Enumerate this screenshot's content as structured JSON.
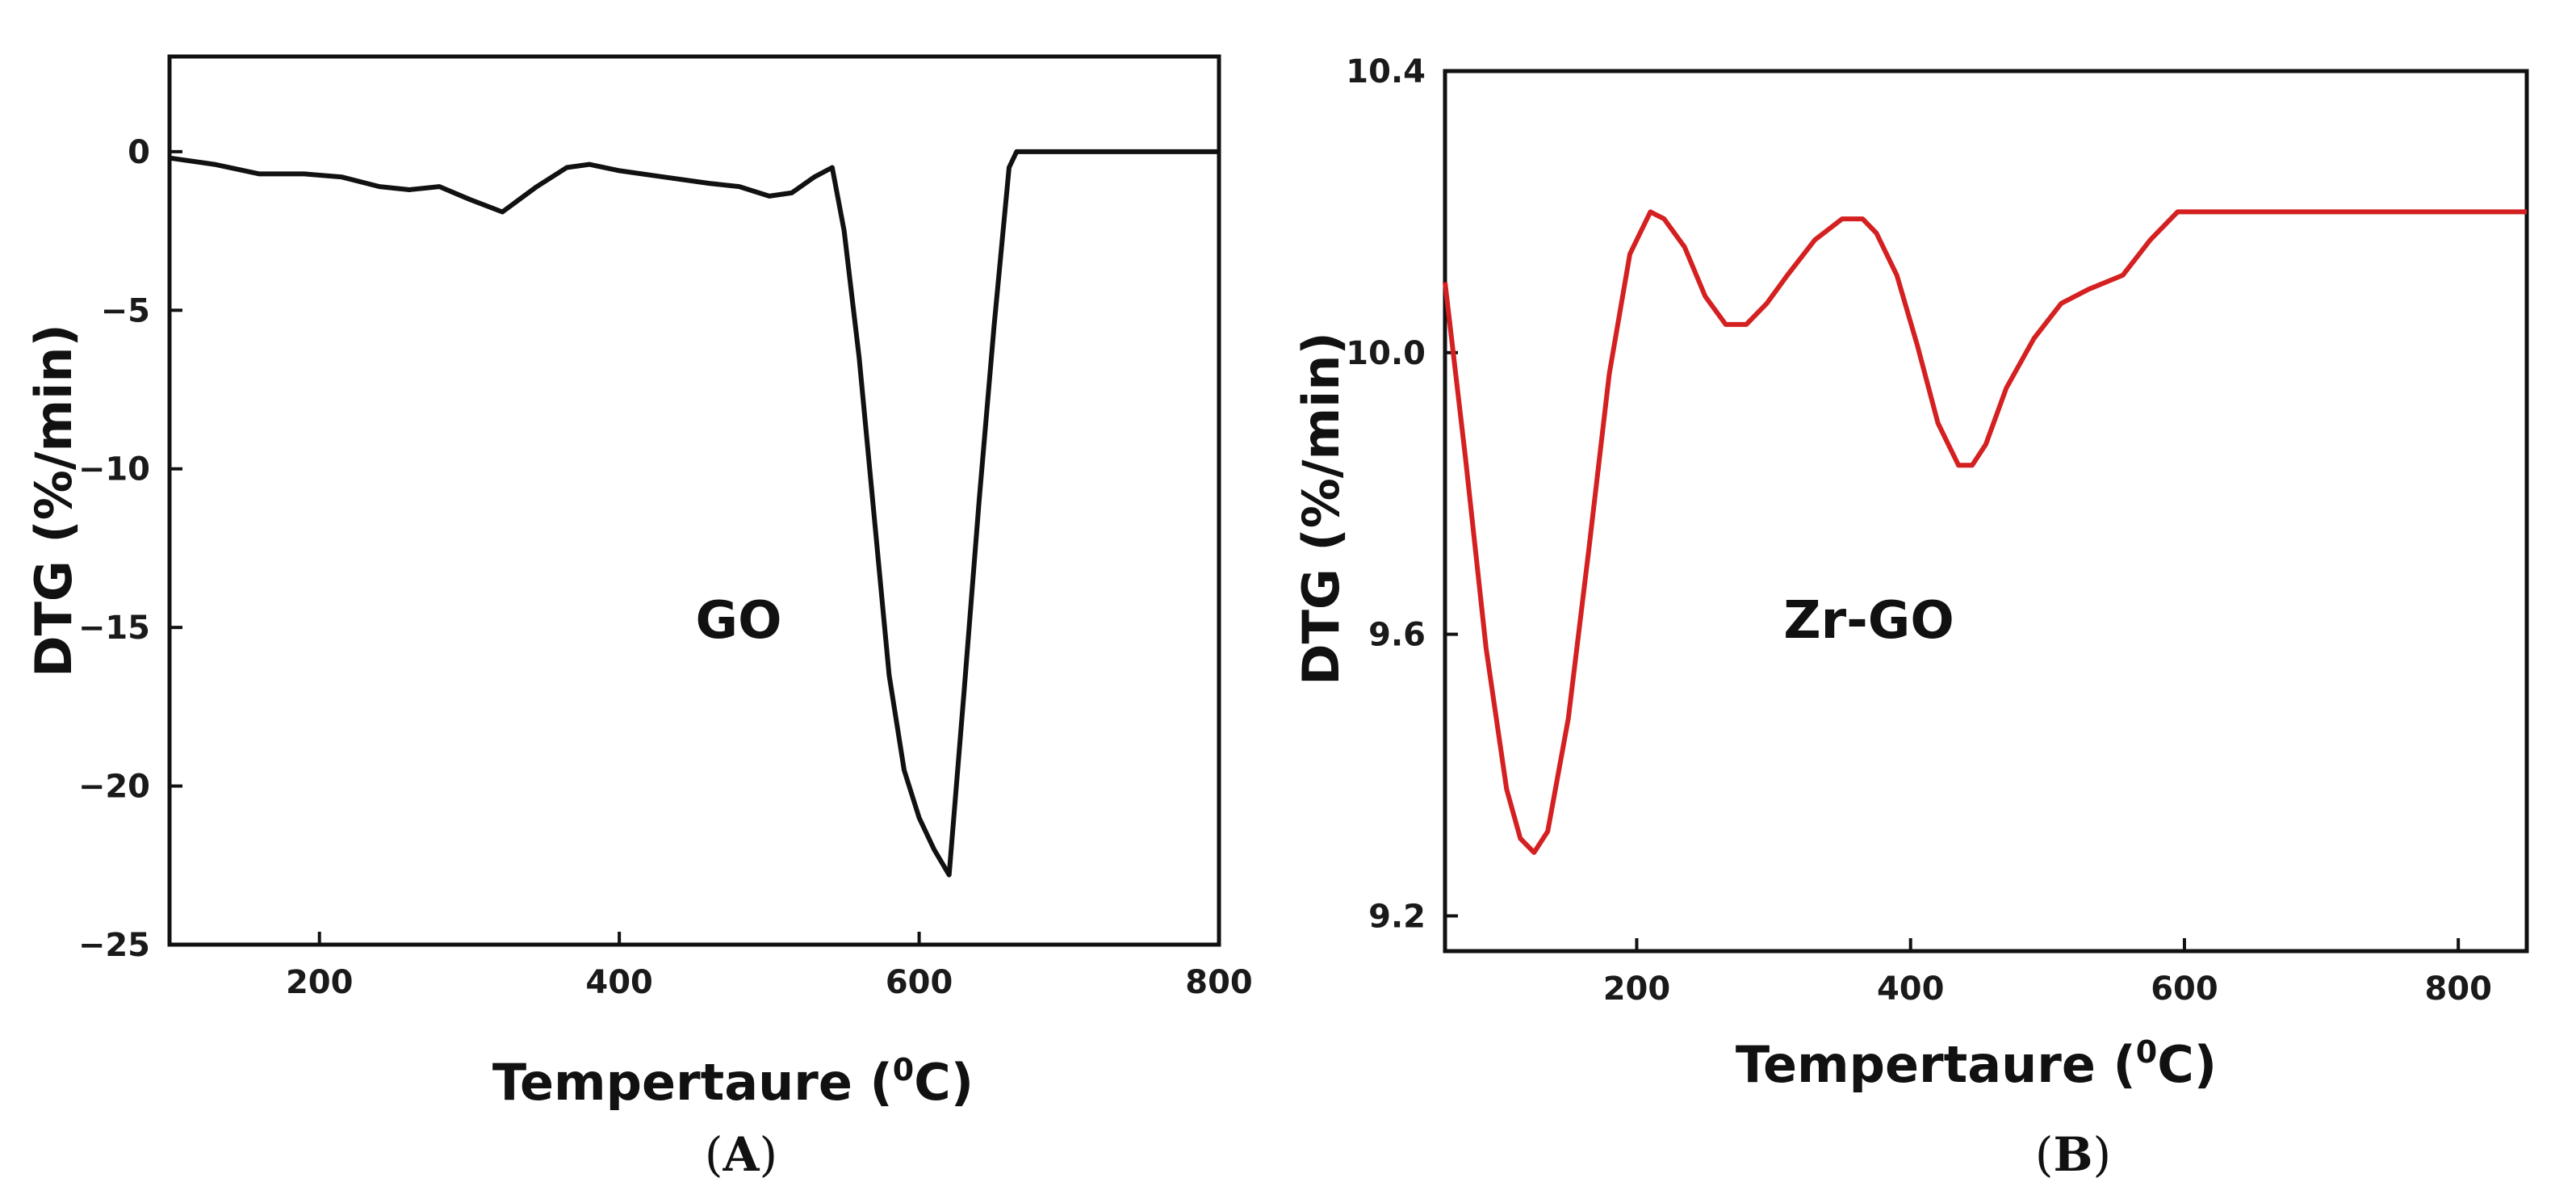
{
  "chart_data": [
    {
      "type": "line",
      "panel_label": "A",
      "annotation": "GO",
      "xlabel": "Tempertaure (",
      "xlabel_superscript": "0",
      "xlabel_suffix": "C)",
      "ylabel": "DTG (%/min)",
      "xlim": [
        100,
        800
      ],
      "ylim": [
        -25,
        3
      ],
      "xticks": [
        200,
        400,
        600,
        800
      ],
      "yticks": [
        0,
        -5,
        -10,
        -15,
        -20,
        -25
      ],
      "ytick_labels": [
        "0",
        "−5",
        "−10",
        "−15",
        "−20",
        "−25"
      ],
      "grid": false,
      "color": "#111111",
      "series": [
        {
          "name": "GO",
          "x": [
            100,
            130,
            160,
            190,
            215,
            240,
            260,
            280,
            300,
            322,
            345,
            365,
            380,
            400,
            430,
            460,
            480,
            500,
            515,
            530,
            542,
            550,
            560,
            570,
            580,
            590,
            600,
            610,
            620,
            630,
            640,
            650,
            660,
            665,
            680,
            720,
            760,
            800
          ],
          "y": [
            -0.2,
            -0.4,
            -0.7,
            -0.7,
            -0.8,
            -1.1,
            -1.2,
            -1.1,
            -1.5,
            -1.9,
            -1.1,
            -0.5,
            -0.4,
            -0.6,
            -0.8,
            -1.0,
            -1.1,
            -1.4,
            -1.3,
            -0.8,
            -0.5,
            -2.5,
            -6.5,
            -11.5,
            -16.5,
            -19.5,
            -21.0,
            -22.0,
            -22.8,
            -17.0,
            -11.0,
            -5.5,
            -0.5,
            0,
            0,
            0,
            0,
            0
          ]
        }
      ]
    },
    {
      "type": "line",
      "panel_label": "B",
      "annotation": "Zr-GO",
      "xlabel": "Tempertaure (",
      "xlabel_superscript": "0",
      "xlabel_suffix": "C)",
      "ylabel": "DTG (%/min)",
      "xlim": [
        60,
        850
      ],
      "ylim": [
        9.15,
        10.4
      ],
      "xticks": [
        200,
        400,
        600,
        800
      ],
      "yticks": [
        9.2,
        9.6,
        10.0,
        10.4
      ],
      "ytick_labels": [
        "9.2",
        "9.6",
        "10.0",
        "10.4"
      ],
      "grid": false,
      "color": "#d42020",
      "series": [
        {
          "name": "Zr-GO",
          "x": [
            60,
            75,
            90,
            105,
            115,
            125,
            135,
            150,
            165,
            180,
            195,
            210,
            220,
            235,
            250,
            265,
            280,
            295,
            310,
            330,
            350,
            365,
            375,
            390,
            405,
            420,
            435,
            445,
            455,
            470,
            490,
            510,
            530,
            555,
            575,
            595,
            620,
            700,
            780,
            850
          ],
          "y": [
            10.1,
            9.85,
            9.58,
            9.38,
            9.31,
            9.29,
            9.32,
            9.48,
            9.72,
            9.97,
            10.14,
            10.2,
            10.19,
            10.15,
            10.08,
            10.04,
            10.04,
            10.07,
            10.11,
            10.16,
            10.19,
            10.19,
            10.17,
            10.11,
            10.01,
            9.9,
            9.84,
            9.84,
            9.87,
            9.95,
            10.02,
            10.07,
            10.09,
            10.11,
            10.16,
            10.2,
            10.2,
            10.2,
            10.2,
            10.2
          ]
        }
      ]
    }
  ]
}
